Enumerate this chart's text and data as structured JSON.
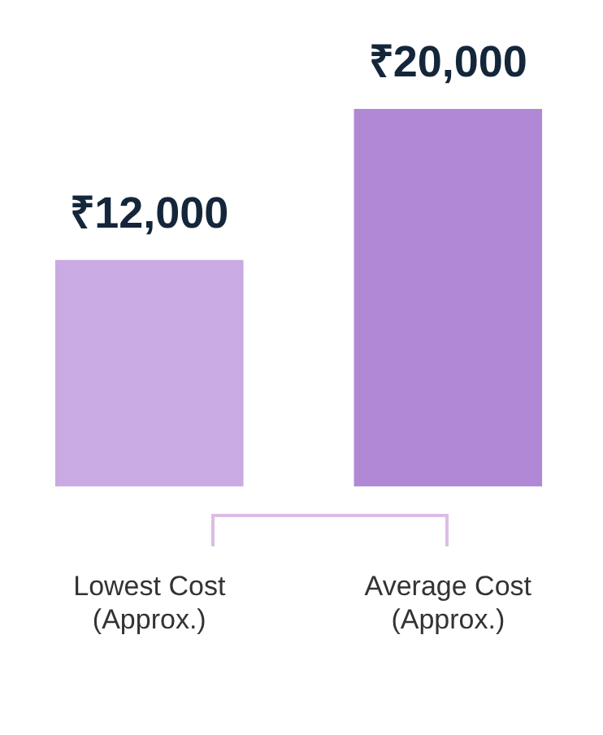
{
  "chart_data": {
    "type": "bar",
    "categories": [
      "Lowest Cost\n(Approx.)",
      "Average Cost\n(Approx.)"
    ],
    "values": [
      12000,
      20000
    ],
    "colors": [
      "#c9aae2",
      "#b088d6"
    ],
    "value_labels": [
      "₹12,000",
      "₹20,000"
    ]
  }
}
